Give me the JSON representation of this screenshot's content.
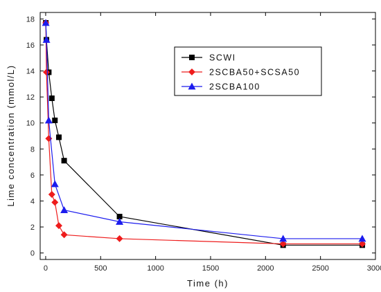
{
  "chart_data": {
    "type": "line",
    "xlabel": "Time (h)",
    "ylabel": "Lime concentration (mmol/L)",
    "xlim": [
      -50,
      3000
    ],
    "ylim": [
      -0.5,
      18.5
    ],
    "x_ticks": [
      0,
      500,
      1000,
      1500,
      2000,
      2500,
      3000
    ],
    "y_ticks": [
      0,
      2,
      4,
      6,
      8,
      10,
      12,
      14,
      16,
      18
    ],
    "grid": false,
    "legend_position": "top-right",
    "series": [
      {
        "name": "SCWI",
        "color": "#000000",
        "marker": "square",
        "x": [
          1,
          7,
          28,
          56,
          84,
          120,
          168,
          672,
          2160,
          2880
        ],
        "y": [
          17.7,
          16.4,
          13.9,
          11.9,
          10.2,
          8.9,
          7.1,
          2.8,
          0.6,
          0.6
        ]
      },
      {
        "name": "2SCBA50+SCSA50",
        "color": "#ee1c1c",
        "marker": "diamond",
        "x": [
          1,
          7,
          28,
          56,
          84,
          120,
          168,
          672,
          2160,
          2880
        ],
        "y": [
          17.7,
          13.9,
          8.8,
          4.5,
          3.9,
          2.1,
          1.4,
          1.1,
          0.7,
          0.7
        ]
      },
      {
        "name": "2SCBA100",
        "color": "#1c1cee",
        "marker": "triangle",
        "x": [
          1,
          7,
          28,
          84,
          168,
          672,
          2160,
          2880
        ],
        "y": [
          17.7,
          16.4,
          10.2,
          5.3,
          3.3,
          2.4,
          1.1,
          1.1
        ]
      }
    ]
  }
}
